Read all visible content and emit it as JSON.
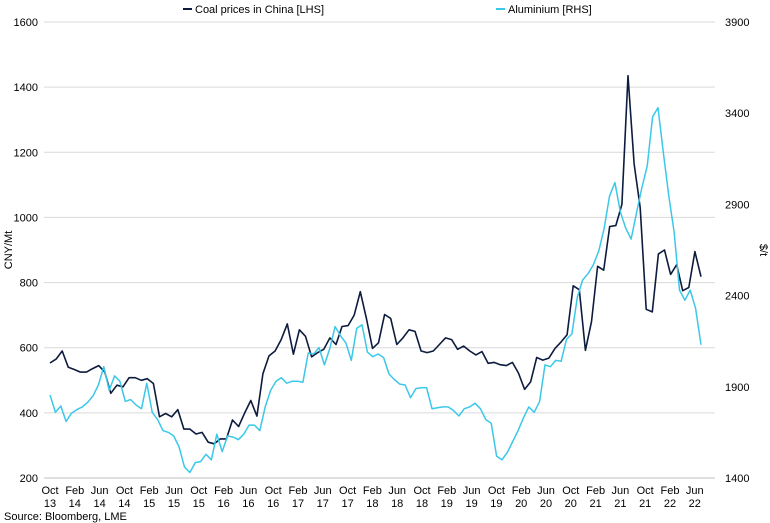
{
  "chart_data": {
    "type": "line",
    "x_tick_labels": [
      {
        "month": "Oct",
        "year": "13"
      },
      {
        "month": "Feb",
        "year": "14"
      },
      {
        "month": "Jun",
        "year": "14"
      },
      {
        "month": "Oct",
        "year": "14"
      },
      {
        "month": "Feb",
        "year": "15"
      },
      {
        "month": "Jun",
        "year": "15"
      },
      {
        "month": "Oct",
        "year": "15"
      },
      {
        "month": "Feb",
        "year": "16"
      },
      {
        "month": "Jun",
        "year": "16"
      },
      {
        "month": "Oct",
        "year": "16"
      },
      {
        "month": "Feb",
        "year": "17"
      },
      {
        "month": "Jun",
        "year": "17"
      },
      {
        "month": "Oct",
        "year": "17"
      },
      {
        "month": "Feb",
        "year": "18"
      },
      {
        "month": "Jun",
        "year": "18"
      },
      {
        "month": "Oct",
        "year": "18"
      },
      {
        "month": "Feb",
        "year": "19"
      },
      {
        "month": "Jun",
        "year": "19"
      },
      {
        "month": "Oct",
        "year": "19"
      },
      {
        "month": "Feb",
        "year": "20"
      },
      {
        "month": "Jun",
        "year": "20"
      },
      {
        "month": "Oct",
        "year": "20"
      },
      {
        "month": "Feb",
        "year": "21"
      },
      {
        "month": "Jun",
        "year": "21"
      },
      {
        "month": "Oct",
        "year": "21"
      },
      {
        "month": "Feb",
        "year": "22"
      },
      {
        "month": "Jun",
        "year": "22"
      }
    ],
    "left_axis": {
      "label": "CNY/Mt",
      "ticks": [
        200,
        400,
        600,
        800,
        1000,
        1200,
        1400,
        1600
      ],
      "range": [
        200,
        1600
      ]
    },
    "right_axis": {
      "label": "$/t",
      "ticks": [
        1400,
        1900,
        2400,
        2900,
        3400,
        3900
      ],
      "range": [
        1400,
        3900
      ]
    },
    "grid": true,
    "legend_position": "top",
    "series": [
      {
        "name": "Coal prices in China [LHS]",
        "axis": "left",
        "color": "#0d1b3e",
        "x_start": "2013-10",
        "values": [
          553,
          565,
          590,
          540,
          533,
          525,
          525,
          536,
          545,
          525,
          460,
          485,
          480,
          508,
          508,
          500,
          505,
          490,
          388,
          398,
          388,
          410,
          350,
          350,
          335,
          340,
          310,
          305,
          320,
          320,
          378,
          358,
          400,
          438,
          390,
          520,
          575,
          590,
          625,
          673,
          580,
          655,
          635,
          572,
          585,
          595,
          630,
          610,
          665,
          668,
          700,
          772,
          690,
          598,
          615,
          702,
          690,
          610,
          630,
          655,
          650,
          590,
          585,
          590,
          610,
          630,
          625,
          595,
          605,
          590,
          578,
          588,
          552,
          555,
          548,
          545,
          555,
          522,
          472,
          495,
          570,
          562,
          568,
          598,
          618,
          640,
          790,
          778,
          592,
          680,
          850,
          838,
          972,
          975,
          1040,
          1435,
          1165,
          1030,
          718,
          710,
          888,
          900,
          825,
          855,
          775,
          785,
          895,
          818
        ]
      },
      {
        "name": "Aluminium [RHS]",
        "axis": "right",
        "color": "#3bc8e8",
        "x_start": "2013-10",
        "values": [
          1855,
          1760,
          1795,
          1710,
          1755,
          1775,
          1790,
          1815,
          1850,
          1910,
          2010,
          1880,
          1960,
          1930,
          1820,
          1830,
          1800,
          1780,
          1920,
          1760,
          1720,
          1660,
          1650,
          1630,
          1570,
          1460,
          1430,
          1485,
          1490,
          1530,
          1500,
          1640,
          1545,
          1630,
          1625,
          1610,
          1640,
          1690,
          1690,
          1660,
          1790,
          1880,
          1930,
          1950,
          1920,
          1930,
          1930,
          1925,
          2085,
          2080,
          2115,
          2020,
          2110,
          2230,
          2180,
          2140,
          2045,
          2220,
          2240,
          2090,
          2065,
          2080,
          2060,
          1970,
          1940,
          1915,
          1910,
          1840,
          1890,
          1895,
          1895,
          1780,
          1785,
          1790,
          1790,
          1770,
          1740,
          1780,
          1790,
          1810,
          1780,
          1720,
          1700,
          1520,
          1500,
          1540,
          1600,
          1660,
          1730,
          1790,
          1760,
          1820,
          2020,
          2010,
          2045,
          2040,
          2160,
          2190,
          2390,
          2485,
          2520,
          2570,
          2645,
          2770,
          2945,
          3020,
          2860,
          2770,
          2710,
          2850,
          2990,
          3110,
          3380,
          3430,
          3185,
          2950,
          2750,
          2430,
          2375,
          2430,
          2330,
          2130
        ]
      }
    ],
    "source": "Source: Bloomberg, LME"
  }
}
